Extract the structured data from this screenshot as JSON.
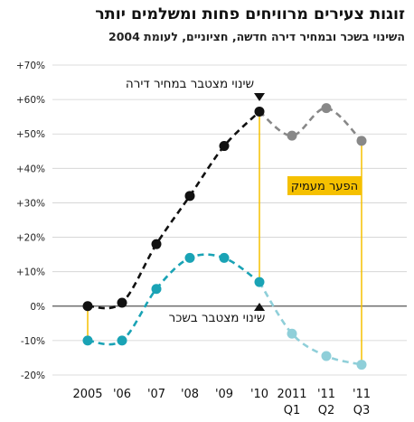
{
  "title": "זוגות צעירים מרוויחים פחות ומשלמים יותר",
  "subtitle": "השינוי בשכר ובמחיר דירה חדשה, חציוניים, לעומת 2004",
  "chart_data": {
    "type": "line",
    "categories": [
      "2005",
      "'06",
      "'07",
      "'08",
      "'09",
      "'10",
      "2011 Q1",
      "'11 Q2",
      "'11 Q3"
    ],
    "category_labels": [
      [
        "2005"
      ],
      [
        "'06"
      ],
      [
        "'07"
      ],
      [
        "'08"
      ],
      [
        "'09"
      ],
      [
        "'10"
      ],
      [
        "2011",
        "Q1"
      ],
      [
        "'11",
        "Q2"
      ],
      [
        "'11",
        "Q3"
      ]
    ],
    "ylim": [
      -20,
      70
    ],
    "yticks": [
      -20,
      -10,
      0,
      10,
      20,
      30,
      40,
      50,
      60,
      70
    ],
    "ytick_labels": [
      "-20%",
      "-10%",
      "0%",
      "+10%",
      "+20%",
      "+30%",
      "+40%",
      "+50%",
      "+60%",
      "+70%"
    ],
    "grid": true,
    "series": [
      {
        "name": "שינוי מצטבר במחיר דירה",
        "values": [
          0,
          1,
          18,
          32,
          46.5,
          56.5,
          49.5,
          57.5,
          48
        ],
        "color": "#111111",
        "highlight_color": "#888888"
      },
      {
        "name": "שינוי מצטבר בשכר",
        "values": [
          -10,
          -10,
          5,
          14,
          14,
          7,
          -8,
          -14.5,
          -17
        ],
        "color": "#1aa3b5",
        "highlight_color": "#8fcfd9"
      }
    ],
    "annotation": {
      "text": "הפער מעמיק",
      "background": "#f5c000",
      "line_color": "#f5c000"
    }
  }
}
